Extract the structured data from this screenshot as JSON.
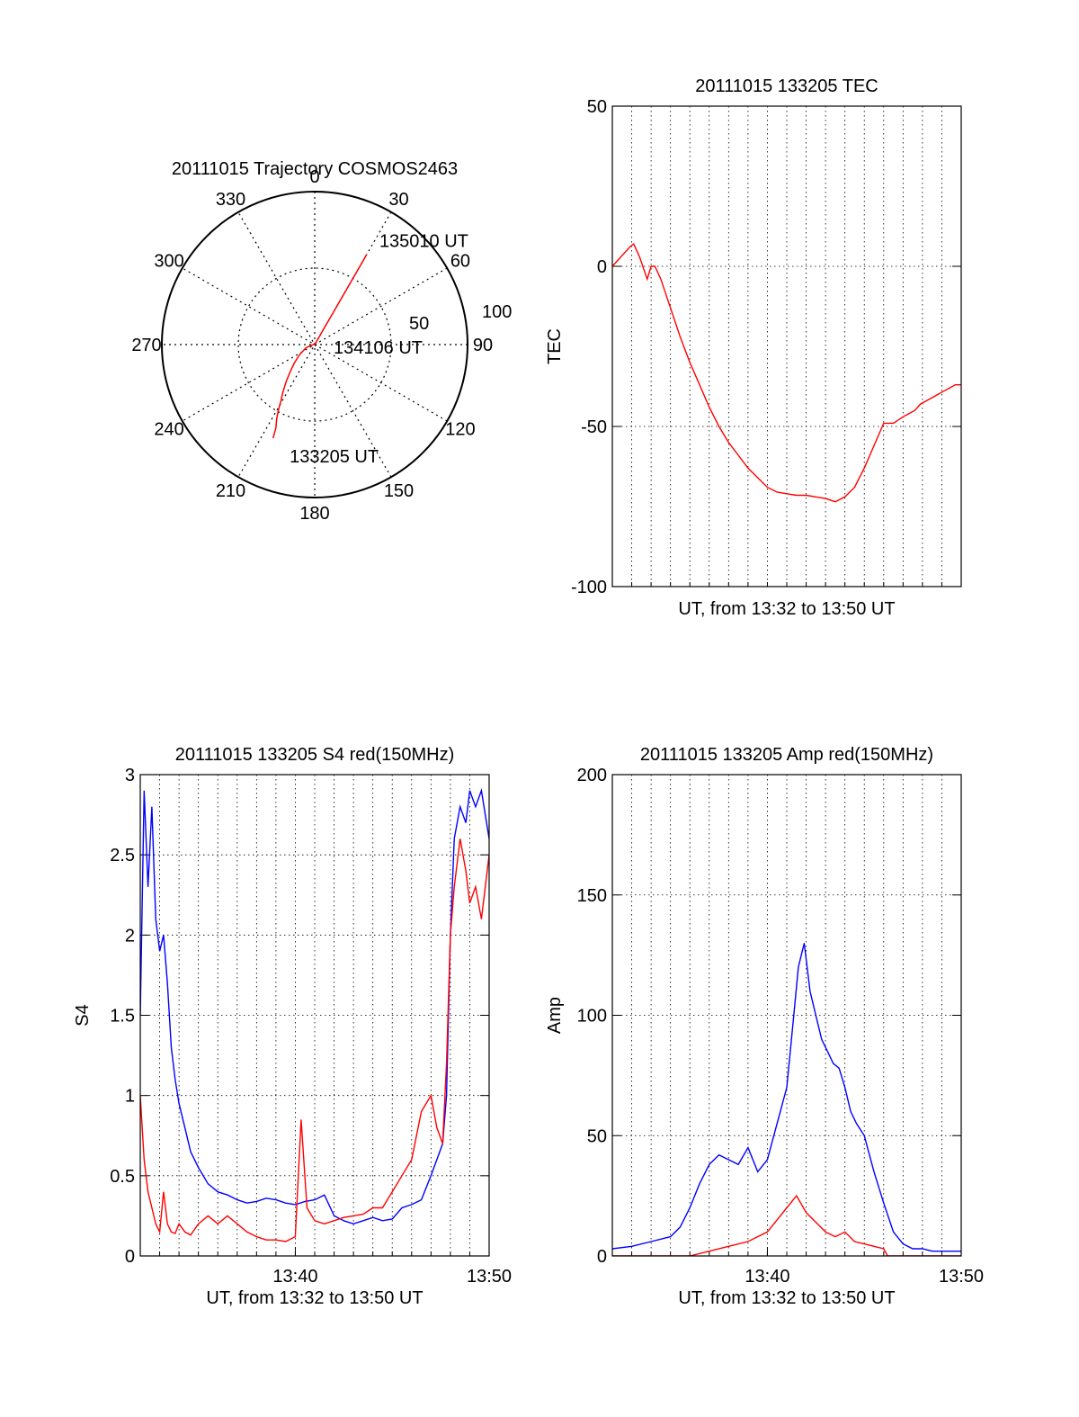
{
  "colors": {
    "primary": "#ff0000",
    "secondary": "#0000ff",
    "axis": "#000000",
    "grid": "#000000",
    "background": "#ffffff"
  },
  "chart_data": [
    {
      "id": "trajectory",
      "type": "polar",
      "title": "20111015 Trajectory COSMOS2463",
      "angle_labels": [
        "0",
        "30",
        "60",
        "90",
        "120",
        "150",
        "180",
        "210",
        "240",
        "270",
        "300",
        "330"
      ],
      "radial_labels": [
        "50",
        "100"
      ],
      "radial_max": 100,
      "grid": true,
      "series": [
        {
          "color": "red",
          "points": [
            [
              204,
              67
            ],
            [
              205,
              60
            ],
            [
              207,
              55
            ],
            [
              209,
              49
            ],
            [
              211,
              43
            ],
            [
              214,
              37
            ],
            [
              218,
              30
            ],
            [
              222,
              24
            ],
            [
              228,
              18
            ],
            [
              236,
              12
            ],
            [
              250,
              6
            ],
            [
              270,
              1
            ],
            [
              0,
              0
            ],
            [
              30,
              3
            ],
            [
              30,
              8
            ],
            [
              30,
              16
            ],
            [
              30,
              24
            ],
            [
              30,
              33
            ],
            [
              30,
              42
            ],
            [
              30,
              51
            ],
            [
              30,
              60
            ],
            [
              30,
              68
            ]
          ]
        }
      ],
      "annotations": [
        {
          "text": "135010 UT",
          "angle": 34,
          "radius": 82
        },
        {
          "text": "134106 UT",
          "angle": 96,
          "radius": 16
        },
        {
          "text": "133205 UT",
          "angle": 190,
          "radius": 74
        }
      ]
    },
    {
      "id": "tec",
      "type": "line",
      "title": "20111015 133205 TEC",
      "xlabel": "UT, from 13:32 to 13:50 UT",
      "ylabel": "TEC",
      "xlim": [
        0,
        18
      ],
      "ylim": [
        -100,
        50
      ],
      "yticks": [
        -100,
        -50,
        0,
        50
      ],
      "xticks": [],
      "grid": true,
      "series": [
        {
          "color": "red",
          "x": [
            0,
            0.3,
            0.6,
            0.9,
            1.1,
            1.4,
            1.8,
            2.0,
            2.2,
            2.5,
            3,
            3.5,
            4,
            4.5,
            5,
            5.5,
            6,
            6.5,
            7,
            7.5,
            8,
            8.5,
            9,
            9.5,
            10,
            10.5,
            11,
            11.5,
            12,
            12.5,
            13,
            13.5,
            14,
            14.5,
            15,
            15.3,
            15.6,
            15.9,
            16.2,
            16.5,
            16.8,
            17.1,
            17.4,
            17.7,
            18
          ],
          "y": [
            0,
            2,
            4,
            6,
            7,
            3,
            -4,
            0,
            0,
            -4,
            -13,
            -22,
            -30,
            -37,
            -44,
            -50,
            -55,
            -59,
            -63,
            -66,
            -69,
            -70.5,
            -71,
            -71.5,
            -71.5,
            -72,
            -72.5,
            -73.5,
            -72,
            -69,
            -63,
            -56,
            -49,
            -49,
            -47,
            -46,
            -45,
            -43,
            -42,
            -41,
            -40,
            -39,
            -38,
            -37,
            -37
          ]
        }
      ]
    },
    {
      "id": "s4",
      "type": "line",
      "title": "20111015 133205 S4 red(150MHz)",
      "xlabel": "UT, from 13:32 to 13:50 UT",
      "ylabel": "S4",
      "xlim": [
        0,
        18
      ],
      "ylim": [
        0,
        3
      ],
      "yticks": [
        "0",
        "0.5",
        "1",
        "1.5",
        "2",
        "2.5",
        "3"
      ],
      "xticks": [
        {
          "value": 8,
          "label": "13:40"
        },
        {
          "value": 18,
          "label": "13:50"
        }
      ],
      "grid": true,
      "series": [
        {
          "color": "blue",
          "x": [
            0,
            0.2,
            0.4,
            0.6,
            0.8,
            1.0,
            1.2,
            1.4,
            1.6,
            1.8,
            2.0,
            2.3,
            2.6,
            3,
            3.5,
            4,
            4.5,
            5,
            5.5,
            6,
            6.5,
            7,
            7.5,
            8,
            8.5,
            9,
            9.5,
            10,
            10.5,
            11,
            11.5,
            12,
            12.5,
            13,
            13.5,
            14,
            14.5,
            15,
            15.3,
            15.6,
            15.8,
            16,
            16.2,
            16.5,
            16.8,
            17,
            17.3,
            17.6,
            18
          ],
          "y": [
            1.5,
            2.9,
            2.3,
            2.8,
            2.1,
            1.9,
            2.0,
            1.7,
            1.3,
            1.1,
            0.95,
            0.8,
            0.65,
            0.55,
            0.45,
            0.4,
            0.38,
            0.35,
            0.33,
            0.34,
            0.36,
            0.35,
            0.33,
            0.32,
            0.34,
            0.35,
            0.38,
            0.25,
            0.22,
            0.2,
            0.22,
            0.24,
            0.22,
            0.23,
            0.3,
            0.32,
            0.35,
            0.5,
            0.6,
            0.7,
            1.0,
            2.0,
            2.6,
            2.8,
            2.7,
            2.9,
            2.8,
            2.9,
            2.6
          ]
        },
        {
          "color": "red",
          "x": [
            0,
            0.2,
            0.4,
            0.6,
            0.8,
            1.0,
            1.2,
            1.4,
            1.6,
            1.8,
            2.0,
            2.3,
            2.6,
            3,
            3.5,
            4,
            4.5,
            5,
            5.5,
            6,
            6.5,
            7,
            7.5,
            8,
            8.3,
            8.6,
            9,
            9.5,
            10,
            10.5,
            11,
            11.5,
            12,
            12.5,
            13,
            13.5,
            14,
            14.5,
            15,
            15.3,
            15.6,
            15.8,
            16,
            16.2,
            16.5,
            16.8,
            17,
            17.3,
            17.6,
            18
          ],
          "y": [
            1.0,
            0.6,
            0.4,
            0.3,
            0.2,
            0.15,
            0.4,
            0.2,
            0.15,
            0.14,
            0.2,
            0.15,
            0.13,
            0.2,
            0.25,
            0.2,
            0.25,
            0.2,
            0.15,
            0.12,
            0.1,
            0.1,
            0.09,
            0.12,
            0.85,
            0.3,
            0.22,
            0.2,
            0.22,
            0.24,
            0.25,
            0.26,
            0.3,
            0.3,
            0.4,
            0.5,
            0.6,
            0.9,
            1.0,
            0.8,
            0.7,
            1.2,
            2.0,
            2.3,
            2.6,
            2.4,
            2.2,
            2.3,
            2.1,
            2.5
          ]
        }
      ]
    },
    {
      "id": "amp",
      "type": "line",
      "title": "20111015 133205 Amp red(150MHz)",
      "xlabel": "UT, from 13:32 to 13:50 UT",
      "ylabel": "Amp",
      "xlim": [
        0,
        18
      ],
      "ylim": [
        0,
        200
      ],
      "yticks": [
        "0",
        "50",
        "100",
        "150",
        "200"
      ],
      "xticks": [
        {
          "value": 8,
          "label": "13:40"
        },
        {
          "value": 18,
          "label": "13:50"
        }
      ],
      "grid": true,
      "series": [
        {
          "color": "blue",
          "x": [
            0,
            1,
            2,
            3,
            3.5,
            4,
            4.5,
            5,
            5.5,
            6,
            6.5,
            7,
            7.5,
            8,
            8.5,
            9,
            9.3,
            9.6,
            9.9,
            10.2,
            10.5,
            10.8,
            11.1,
            11.4,
            11.7,
            12,
            12.3,
            12.6,
            13,
            13.5,
            14,
            14.5,
            15,
            15.5,
            16,
            16.5,
            17,
            18
          ],
          "y": [
            3,
            4,
            6,
            8,
            12,
            20,
            30,
            38,
            42,
            40,
            38,
            45,
            35,
            40,
            55,
            70,
            95,
            120,
            130,
            110,
            100,
            90,
            85,
            80,
            78,
            70,
            60,
            55,
            50,
            35,
            22,
            10,
            5,
            3,
            3,
            2,
            2,
            2
          ]
        },
        {
          "color": "red",
          "x": [
            0,
            4,
            5,
            6,
            7,
            8,
            8.5,
            9,
            9.5,
            10,
            10.5,
            11,
            11.5,
            12,
            12.5,
            13,
            13.5,
            14,
            14.2,
            18
          ],
          "y": [
            0,
            0,
            2,
            4,
            6,
            10,
            15,
            20,
            25,
            18,
            14,
            10,
            8,
            10,
            6,
            5,
            4,
            3,
            0,
            0
          ]
        }
      ]
    }
  ]
}
